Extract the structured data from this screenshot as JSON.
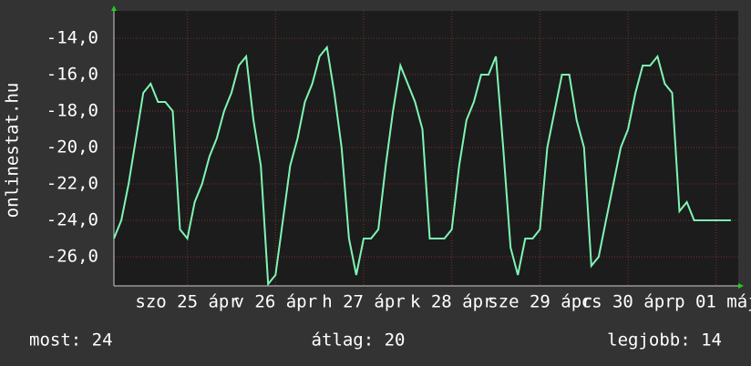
{
  "chart_data": {
    "type": "line",
    "y_label": "onlinestat.hu",
    "color": "#7ff5b4",
    "grid": true,
    "x": [
      0,
      2,
      4,
      6,
      8,
      10,
      12,
      14,
      16,
      18,
      20,
      22,
      24,
      26,
      28,
      30,
      32,
      34,
      36,
      38,
      40,
      42,
      44,
      46,
      48,
      50,
      52,
      54,
      56,
      58,
      60,
      62,
      64,
      66,
      68,
      70,
      72,
      74,
      76,
      78,
      80,
      82,
      84,
      86,
      88,
      90,
      92,
      94,
      96,
      98,
      100,
      102,
      104,
      106,
      108,
      110,
      112,
      114,
      116,
      118,
      120,
      122,
      124,
      126,
      128,
      130,
      132,
      134,
      136,
      138,
      140,
      142,
      144,
      146,
      148,
      150,
      152,
      154,
      156,
      158,
      160,
      162,
      164,
      166,
      168
    ],
    "values": [
      -25,
      -24,
      -22,
      -19.5,
      -17,
      -16.5,
      -17.5,
      -17.5,
      -18,
      -24.5,
      -25,
      -23,
      -22,
      -20.5,
      -19.5,
      -18,
      -17,
      -15.5,
      -15,
      -18.5,
      -21,
      -27.5,
      -27,
      -24,
      -21,
      -19.5,
      -17.5,
      -16.5,
      -15,
      -14.5,
      -17,
      -20,
      -25,
      -27,
      -25,
      -25,
      -24.5,
      -21,
      -18,
      -15.5,
      -16.5,
      -17.5,
      -19,
      -25,
      -25,
      -25,
      -24.5,
      -21,
      -18.5,
      -17.5,
      -16,
      -16,
      -15,
      -20,
      -25.5,
      -27,
      -25,
      -25,
      -24.5,
      -20,
      -18,
      -16,
      -16,
      -18.5,
      -20,
      -26.5,
      -26,
      -24,
      -22,
      -20,
      -19,
      -17,
      -15.5,
      -15.5,
      -15,
      -16.5,
      -17,
      -23.5,
      -23,
      -24,
      -24,
      -24,
      -24,
      -24,
      -24
    ],
    "xlim": [
      0,
      170
    ],
    "xticks": [
      {
        "value": 20,
        "label": "szo 25 ápr"
      },
      {
        "value": 44,
        "label": "v 26 ápr"
      },
      {
        "value": 68,
        "label": "h 27 ápr"
      },
      {
        "value": 92,
        "label": "k 28 ápr"
      },
      {
        "value": 116,
        "label": "sze 29 ápr"
      },
      {
        "value": 140,
        "label": "cs 30 ápr"
      },
      {
        "value": 164,
        "label": "p 01 máj"
      }
    ],
    "ylim": [
      -27.6,
      -12.5
    ],
    "yticks": [
      {
        "value": -26,
        "label": "-26,0"
      },
      {
        "value": -24,
        "label": "-24,0"
      },
      {
        "value": -22,
        "label": "-22,0"
      },
      {
        "value": -20,
        "label": "-20,0"
      },
      {
        "value": -18,
        "label": "-18,0"
      },
      {
        "value": -16,
        "label": "-16,0"
      },
      {
        "value": -14,
        "label": "-14,0"
      }
    ],
    "footer": {
      "current": "most: 24",
      "average": "átlag: 20",
      "best": "legjobb: 14"
    }
  }
}
